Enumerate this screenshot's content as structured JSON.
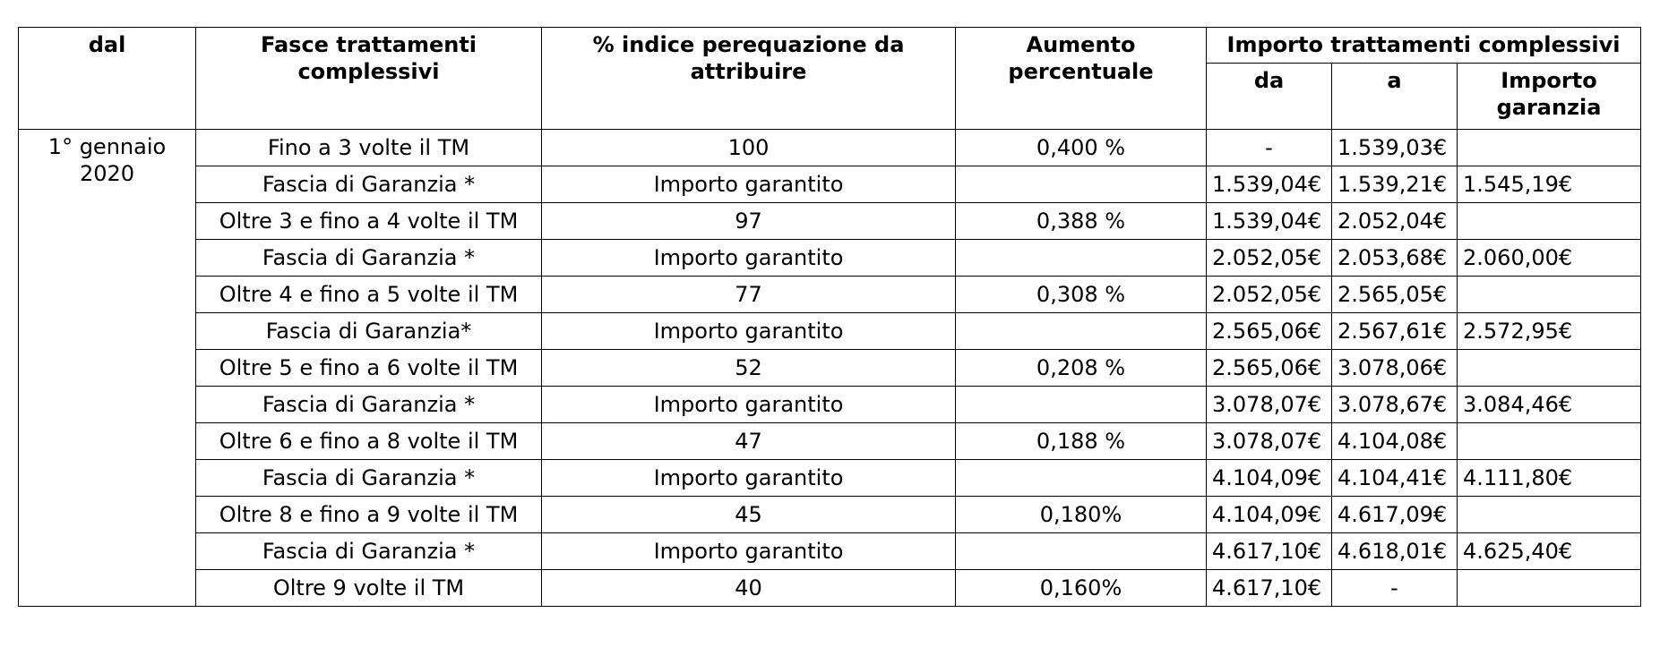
{
  "table": {
    "headers": {
      "dal": "dal",
      "fasce": "Fasce trattamenti complessivi",
      "indice": "% indice perequazione da attribuire",
      "aumento": "Aumento percentuale",
      "importo_group": "Importo trattamenti complessivi",
      "da": "da",
      "a": "a",
      "garanzia": "Importo garanzia"
    },
    "dal_value": "1° gennaio 2020",
    "rows": [
      {
        "fascia": "Fino a 3 volte il TM",
        "indice": "100",
        "aumento": "0,400 %",
        "da": "-",
        "a": "1.539,03€",
        "garanzia": ""
      },
      {
        "fascia": "Fascia di Garanzia *",
        "indice": "Importo garantito",
        "aumento": "",
        "da": "1.539,04€",
        "a": "1.539,21€",
        "garanzia": "1.545,19€"
      },
      {
        "fascia": "Oltre 3 e fino a 4 volte il TM",
        "indice": "97",
        "aumento": "0,388 %",
        "da": "1.539,04€",
        "a": "2.052,04€",
        "garanzia": ""
      },
      {
        "fascia": "Fascia di Garanzia *",
        "indice": "Importo garantito",
        "aumento": "",
        "da": "2.052,05€",
        "a": "2.053,68€",
        "garanzia": "2.060,00€"
      },
      {
        "fascia": "Oltre 4 e fino a 5 volte il TM",
        "indice": "77",
        "aumento": "0,308 %",
        "da": "2.052,05€",
        "a": "2.565,05€",
        "garanzia": ""
      },
      {
        "fascia": "Fascia di Garanzia*",
        "indice": "Importo garantito",
        "aumento": "",
        "da": "2.565,06€",
        "a": "2.567,61€",
        "garanzia": "2.572,95€"
      },
      {
        "fascia": "Oltre 5 e fino a 6 volte il TM",
        "indice": "52",
        "aumento": "0,208 %",
        "da": "2.565,06€",
        "a": "3.078,06€",
        "garanzia": ""
      },
      {
        "fascia": "Fascia di Garanzia *",
        "indice": "Importo garantito",
        "aumento": "",
        "da": "3.078,07€",
        "a": "3.078,67€",
        "garanzia": "3.084,46€"
      },
      {
        "fascia": "Oltre 6 e fino a 8 volte il TM",
        "indice": "47",
        "aumento": "0,188 %",
        "da": "3.078,07€",
        "a": "4.104,08€",
        "garanzia": ""
      },
      {
        "fascia": "Fascia di Garanzia *",
        "indice": "Importo garantito",
        "aumento": "",
        "da": "4.104,09€",
        "a": "4.104,41€",
        "garanzia": "4.111,80€"
      },
      {
        "fascia": "Oltre 8 e fino a 9 volte il TM",
        "indice": "45",
        "aumento": "0,180%",
        "da": "4.104,09€",
        "a": "4.617,09€",
        "garanzia": ""
      },
      {
        "fascia": "Fascia di Garanzia *",
        "indice": "Importo garantito",
        "aumento": "",
        "da": "4.617,10€",
        "a": "4.618,01€",
        "garanzia": "4.625,40€"
      },
      {
        "fascia": "Oltre 9 volte il TM",
        "indice": "40",
        "aumento": "0,160%",
        "da": "4.617,10€",
        "a": "-",
        "garanzia": ""
      }
    ]
  }
}
